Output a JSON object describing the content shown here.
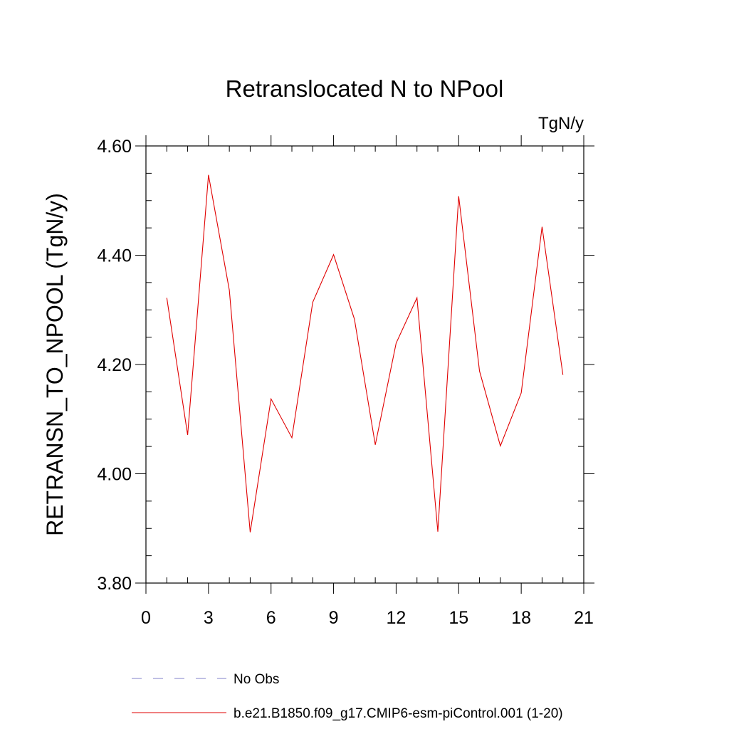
{
  "chart_data": {
    "type": "line",
    "title": "Retranslocated N to NPool",
    "units": "TgN/y",
    "xlabel": "",
    "ylabel": "RETRANSN_TO_NPOOL  (TgN/y)",
    "xlim": [
      0,
      21
    ],
    "ylim": [
      3.8,
      4.6
    ],
    "x_ticks": [
      0,
      3,
      6,
      9,
      12,
      15,
      18,
      21
    ],
    "x_tick_labels": [
      "0",
      "3",
      "6",
      "9",
      "12",
      "15",
      "18",
      "21"
    ],
    "y_ticks": [
      3.8,
      4.0,
      4.2,
      4.4,
      4.6
    ],
    "y_tick_labels": [
      "3.80",
      "4.00",
      "4.20",
      "4.40",
      "4.60"
    ],
    "y_minor_step": 0.05,
    "x_minor_step": 1,
    "legend_position": "bottom-left",
    "series": [
      {
        "name": "No Obs",
        "color": "#8080c8",
        "style": "dashed",
        "x": [],
        "values": []
      },
      {
        "name": "b.e21.B1850.f09_g17.CMIP6-esm-piControl.001 (1-20)",
        "color": "#e00000",
        "style": "solid",
        "x": [
          1,
          2,
          3,
          4,
          5,
          6,
          7,
          8,
          9,
          10,
          11,
          12,
          13,
          14,
          15,
          16,
          17,
          18,
          19,
          20
        ],
        "values": [
          4.322,
          4.071,
          4.547,
          4.336,
          3.893,
          4.137,
          4.066,
          4.314,
          4.401,
          4.283,
          4.053,
          4.239,
          4.322,
          3.894,
          4.508,
          4.188,
          4.051,
          4.148,
          4.452,
          4.181
        ]
      }
    ]
  }
}
